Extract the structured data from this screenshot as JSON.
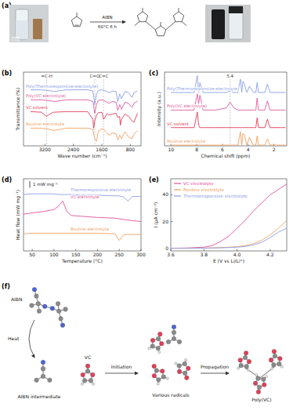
{
  "chart_data": [
    {
      "type": "line",
      "title": "(b)",
      "xlabel": "Wave number (cm⁻¹)",
      "ylabel": "Transmittance (%)",
      "tick_labels": "x",
      "xlim": [
        3800,
        500
      ],
      "xticks": [
        3200,
        2400,
        1600,
        800
      ],
      "ylim": [
        0,
        125
      ],
      "x": [
        3600,
        3300,
        3150,
        3000,
        2950,
        2600,
        2300,
        2000,
        1850,
        1830,
        1800,
        1750,
        1700,
        1600,
        1550,
        1450,
        1400,
        1300,
        1200,
        1150,
        1100,
        1080,
        1050,
        950,
        850,
        750,
        700,
        600
      ],
      "series": [
        {
          "name": "Poly(Thermoresponsive-electrolyte)",
          "color": "#8a9ee6",
          "values": [
            95,
            95,
            94,
            93,
            92,
            95,
            95,
            95,
            93,
            85,
            70,
            88,
            94,
            95,
            94,
            92,
            90,
            93,
            92,
            75,
            88,
            86,
            80,
            92,
            90,
            82,
            90,
            93
          ]
        },
        {
          "name": "Poly(VC electrolyte)",
          "color": "#de5aa0",
          "values": [
            78,
            78,
            77,
            76,
            75,
            78,
            78,
            78,
            75,
            68,
            55,
            70,
            77,
            78,
            77,
            74,
            72,
            75,
            74,
            60,
            70,
            68,
            62,
            74,
            72,
            65,
            72,
            76
          ]
        },
        {
          "name": "VC solvent",
          "color": "#e23a55",
          "values": [
            58,
            57,
            50,
            56,
            57,
            58,
            58,
            58,
            45,
            30,
            42,
            52,
            56,
            57,
            45,
            55,
            52,
            54,
            55,
            48,
            50,
            35,
            45,
            54,
            50,
            42,
            40,
            55
          ]
        },
        {
          "name": "Routine electrolyte",
          "color": "#f0a060",
          "values": [
            30,
            30,
            29,
            27,
            26,
            30,
            30,
            30,
            28,
            20,
            12,
            8,
            25,
            29,
            28,
            22,
            18,
            22,
            20,
            10,
            18,
            16,
            12,
            24,
            15,
            12,
            20,
            26
          ]
        }
      ],
      "annotations": [
        {
          "text": "=C-H",
          "x": 3150
        },
        {
          "text": "C=O",
          "x": 1800
        },
        {
          "text": "C=C",
          "x": 1550
        }
      ]
    },
    {
      "type": "line",
      "title": "(c)",
      "xlabel": "Chemical shift (ppm)",
      "ylabel": "Intensity (a.u.)",
      "tick_labels": "x",
      "xlim": [
        10.5,
        1
      ],
      "xticks": [
        10,
        8,
        6,
        4,
        2
      ],
      "ylim": [
        0,
        105
      ],
      "x": [
        10,
        8.2,
        7.95,
        7.85,
        7.75,
        7.5,
        6.5,
        5.7,
        5.4,
        5.1,
        4.8,
        4.6,
        4.5,
        4.4,
        4.3,
        4.1,
        3.9,
        3.6,
        3.4,
        3.3,
        3.2,
        2.7,
        2.5,
        2.3,
        1.5,
        1.1
      ],
      "series": [
        {
          "name": "Poly(Thermoresponsive-electrolyte)",
          "color": "#8a9ee6",
          "values": [
            76,
            76,
            100,
            76,
            90,
            76,
            76,
            76,
            78,
            76,
            76,
            95,
            76,
            92,
            88,
            76,
            85,
            76,
            76,
            90,
            76,
            76,
            88,
            76,
            76,
            76
          ]
        },
        {
          "name": "Poly(VC electrolyte)",
          "color": "#de5aa0",
          "values": [
            51,
            51,
            74,
            60,
            72,
            51,
            51,
            54,
            62,
            54,
            51,
            51,
            51,
            51,
            51,
            51,
            51,
            51,
            51,
            68,
            51,
            51,
            64,
            51,
            51,
            51
          ]
        },
        {
          "name": "VC solvent",
          "color": "#e23a55",
          "values": [
            26,
            26,
            48,
            30,
            26,
            26,
            26,
            26,
            26,
            26,
            26,
            26,
            26,
            26,
            26,
            26,
            26,
            26,
            26,
            40,
            26,
            26,
            38,
            26,
            26,
            26
          ]
        },
        {
          "name": "Routine electrolyte",
          "color": "#f0a060",
          "values": [
            1,
            1,
            1,
            1,
            1,
            1,
            1,
            1,
            1,
            1,
            1,
            20,
            1,
            18,
            16,
            1,
            12,
            1,
            1,
            14,
            1,
            1,
            10,
            1,
            1,
            1
          ]
        }
      ],
      "annotations": [
        {
          "text": "5.4",
          "x": 5.4
        }
      ]
    },
    {
      "type": "line",
      "title": "(d)",
      "xlabel": "Temperature (°C)",
      "ylabel": "Heat flow (mW mg⁻¹)",
      "tick_labels": "x",
      "xlim": [
        30,
        300
      ],
      "xticks": [
        50,
        100,
        150,
        200,
        250,
        300
      ],
      "ylim": [
        0,
        11
      ],
      "x": [
        30,
        50,
        75,
        100,
        110,
        120,
        130,
        140,
        160,
        200,
        240,
        250,
        260,
        270,
        280,
        300
      ],
      "series": [
        {
          "name": "Thermoresponsive electrolyte",
          "color": "#8a9ee6",
          "values": [
            8.6,
            8.7,
            8.7,
            8.7,
            8.6,
            8.6,
            8.6,
            8.6,
            8.5,
            8.5,
            8.4,
            8.4,
            8.2,
            7.6,
            8.3,
            8.3
          ]
        },
        {
          "name": "VC electrolyte",
          "color": "#e8509a",
          "values": [
            5.6,
            5.8,
            6.0,
            6.3,
            6.8,
            7.6,
            6.0,
            5.4,
            5.3,
            5.1,
            5.0,
            4.9,
            4.8,
            4.7,
            4.6,
            4.5
          ]
        },
        {
          "name": "Routine electrolyte",
          "color": "#f0a060",
          "values": [
            2.6,
            2.7,
            2.7,
            2.7,
            2.7,
            2.7,
            2.7,
            2.7,
            2.7,
            2.7,
            2.6,
            1.6,
            2.5,
            2.5,
            2.5,
            2.5
          ]
        }
      ],
      "scale_bar": {
        "value": 1,
        "label": "1 mW mg⁻¹"
      }
    },
    {
      "type": "line",
      "title": "(e)",
      "xlabel": "E (V vs Li/Li⁺)",
      "ylabel": "I (μA cm⁻²)",
      "legend": "upper left",
      "xlim": [
        3.6,
        4.3
      ],
      "xticks": [
        3.6,
        3.8,
        {
          "value": 4,
          "label": "4.0"
        },
        4.2
      ],
      "ylim": [
        -2,
        52
      ],
      "yticks": [
        0,
        20,
        40
      ],
      "x": [
        3.6,
        3.7,
        3.8,
        3.85,
        3.9,
        3.95,
        4.0,
        4.05,
        4.1,
        4.15,
        4.2,
        4.25,
        4.3
      ],
      "series": [
        {
          "name": "VC electrolyte",
          "color": "#e8509a",
          "values": [
            0,
            0.2,
            0.8,
            2,
            5,
            9,
            15,
            21,
            28,
            34,
            40,
            44,
            48
          ]
        },
        {
          "name": "Routine electrolyte",
          "color": "#f0a060",
          "values": [
            0,
            0,
            0.2,
            0.3,
            0.5,
            0.8,
            1.2,
            2,
            3.5,
            6,
            10,
            15,
            21
          ]
        },
        {
          "name": "Thermoresponsive electrolyte",
          "color": "#8a9ee6",
          "values": [
            0,
            0,
            0.1,
            0.2,
            0.3,
            0.5,
            0.8,
            1.3,
            2.5,
            4.5,
            8,
            12,
            15
          ]
        }
      ]
    }
  ],
  "diagram": {
    "a": {
      "title": "(a)",
      "scale_text": "1 cm",
      "reagent": "AIBN",
      "conditions": "60°C 6 h"
    },
    "f": {
      "title": "(f)",
      "labels": {
        "aibn": "AIBN",
        "heat": "Heat",
        "intermediate": "AIBN intermediate",
        "vc": "VC",
        "initiation": "Initiation",
        "radicals": "Various radicals",
        "propagation": "Propagation",
        "product": "Poly(VC)"
      }
    }
  }
}
